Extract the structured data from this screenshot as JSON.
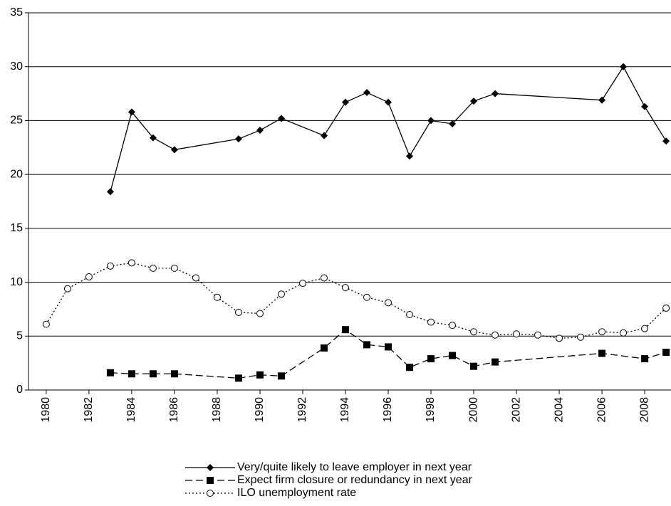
{
  "chart_data": {
    "type": "line",
    "xlim": [
      1979.17,
      2009.23
    ],
    "ylim": [
      0,
      35
    ],
    "xticks": [
      1980,
      1982,
      1984,
      1986,
      1988,
      1990,
      1992,
      1994,
      1996,
      1998,
      2000,
      2002,
      2004,
      2006,
      2008
    ],
    "yticks": [
      0,
      5,
      10,
      15,
      20,
      25,
      30,
      35
    ],
    "grid": true,
    "legend": "bottom",
    "series": [
      {
        "name": "Very/quite likely to leave employer in next year",
        "color": "#000000",
        "marker": "diamond",
        "line_style": "solid",
        "x": [
          1983,
          1984,
          1985,
          1986,
          1989,
          1990,
          1991,
          1993,
          1994,
          1995,
          1996,
          1997,
          1998,
          1999,
          2000,
          2001,
          2006,
          2007,
          2008,
          2009
        ],
        "values": [
          18.4,
          25.8,
          23.4,
          22.3,
          23.3,
          24.1,
          25.2,
          23.6,
          26.7,
          27.6,
          26.7,
          21.7,
          25.0,
          24.7,
          26.8,
          27.5,
          26.9,
          30.0,
          26.3,
          23.1
        ]
      },
      {
        "name": "Expect firm closure or redundancy in next year",
        "color": "#000000",
        "marker": "square",
        "line_style": "dashed",
        "x": [
          1983,
          1984,
          1985,
          1986,
          1989,
          1990,
          1991,
          1993,
          1994,
          1995,
          1996,
          1997,
          1998,
          1999,
          2000,
          2001,
          2006,
          2008,
          2009
        ],
        "values": [
          1.6,
          1.5,
          1.5,
          1.5,
          1.1,
          1.4,
          1.3,
          3.9,
          5.6,
          4.2,
          4.0,
          2.1,
          2.9,
          3.2,
          2.2,
          2.6,
          3.4,
          2.9,
          3.5
        ]
      },
      {
        "name": "ILO unemployment rate",
        "color": "#000000",
        "marker": "circle-open",
        "line_style": "dotted",
        "x": [
          1980,
          1981,
          1982,
          1983,
          1984,
          1985,
          1986,
          1987,
          1988,
          1989,
          1990,
          1991,
          1992,
          1993,
          1994,
          1995,
          1996,
          1997,
          1998,
          1999,
          2000,
          2001,
          2002,
          2003,
          2004,
          2005,
          2006,
          2007,
          2008,
          2009
        ],
        "values": [
          6.1,
          9.4,
          10.5,
          11.5,
          11.8,
          11.3,
          11.3,
          10.4,
          8.6,
          7.2,
          7.1,
          8.9,
          9.9,
          10.4,
          9.5,
          8.6,
          8.1,
          7.0,
          6.3,
          6.0,
          5.4,
          5.1,
          5.2,
          5.1,
          4.8,
          4.9,
          5.4,
          5.3,
          5.7,
          7.6
        ]
      }
    ]
  }
}
